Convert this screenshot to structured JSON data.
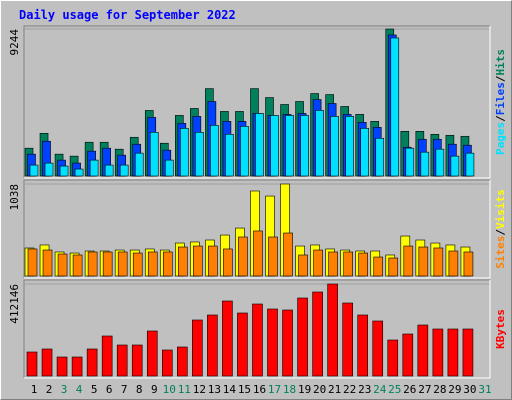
{
  "title": "Daily usage for September 2022",
  "legend_separator": "/",
  "chart_data": [
    {
      "type": "bar",
      "categories": [
        "1",
        "2",
        "3",
        "4",
        "5",
        "6",
        "7",
        "8",
        "9",
        "10",
        "11",
        "12",
        "13",
        "14",
        "15",
        "16",
        "17",
        "18",
        "19",
        "20",
        "21",
        "22",
        "23",
        "24",
        "25",
        "26",
        "27",
        "28",
        "29",
        "30",
        "31"
      ],
      "category_colors": [
        "#000000",
        "#000000",
        "#00805c",
        "#00805c",
        "#000000",
        "#000000",
        "#000000",
        "#000000",
        "#000000",
        "#00805c",
        "#00805c",
        "#000000",
        "#000000",
        "#000000",
        "#000000",
        "#000000",
        "#00805c",
        "#00805c",
        "#000000",
        "#000000",
        "#000000",
        "#000000",
        "#000000",
        "#00805c",
        "#00805c",
        "#000000",
        "#000000",
        "#000000",
        "#000000",
        "#000000",
        "#00805c"
      ],
      "ylim": [
        0,
        9244
      ],
      "yticks": [
        9244
      ],
      "grid": true,
      "series": [
        {
          "name": "Hits",
          "color": "#00805c",
          "values": [
            1749,
            2686,
            1374,
            1249,
            2124,
            2124,
            1686,
            2436,
            4122,
            2061,
            3810,
            4247,
            5496,
            4060,
            4060,
            5496,
            4934,
            4497,
            4685,
            5184,
            5122,
            4372,
            3873,
            3435,
            9244,
            2811,
            2811,
            2623,
            2561,
            2498,
            null
          ]
        },
        {
          "name": "Files",
          "color": "#0040ff",
          "values": [
            1374,
            2186,
            999,
            812,
            1562,
            1749,
            1312,
            1999,
            3685,
            1624,
            3310,
            3748,
            4685,
            3435,
            3435,
            3935,
            3810,
            3873,
            3935,
            4809,
            4560,
            3873,
            3373,
            3061,
            8869,
            1811,
            2311,
            2311,
            1999,
            1936,
            null
          ]
        },
        {
          "name": "Pages",
          "color": "#00e0ff",
          "values": [
            687,
            812,
            625,
            437,
            999,
            687,
            687,
            1437,
            2748,
            999,
            2998,
            2748,
            3185,
            2623,
            3123,
            3935,
            3810,
            3810,
            3810,
            4122,
            3748,
            3748,
            2998,
            2373,
            8682,
            1749,
            1499,
            1686,
            1249,
            1437,
            null
          ]
        }
      ]
    },
    {
      "type": "bar",
      "ylim": [
        0,
        1038
      ],
      "yticks": [
        1038
      ],
      "grid": true,
      "series": [
        {
          "name": "Visits",
          "color": "#ffff00",
          "values": [
            316,
            350,
            271,
            259,
            282,
            282,
            293,
            293,
            305,
            293,
            372,
            384,
            406,
            462,
            541,
            959,
            902,
            1038,
            338,
            350,
            305,
            293,
            282,
            282,
            237,
            451,
            406,
            372,
            350,
            327,
            null
          ]
        },
        {
          "name": "Sites",
          "color": "#ff8000",
          "values": [
            305,
            293,
            248,
            237,
            271,
            271,
            271,
            259,
            271,
            271,
            327,
            338,
            338,
            305,
            440,
            508,
            440,
            485,
            237,
            293,
            271,
            271,
            259,
            214,
            203,
            338,
            327,
            316,
            282,
            271,
            null
          ]
        }
      ]
    },
    {
      "type": "bar",
      "ylim": [
        0,
        412146
      ],
      "yticks": [
        412146
      ],
      "grid": true,
      "series": [
        {
          "name": "KBytes",
          "color": "#ff0000",
          "values": [
            107520,
            120960,
            85120,
            85120,
            120960,
            179200,
            138880,
            138880,
            201600,
            116480,
            129920,
            250880,
            273280,
            336000,
            282240,
            322560,
            300160,
            295680,
            349440,
            376320,
            412146,
            327040,
            273280,
            246400,
            161280,
            188160,
            228480,
            210560,
            210560,
            210560,
            null
          ]
        }
      ]
    }
  ]
}
